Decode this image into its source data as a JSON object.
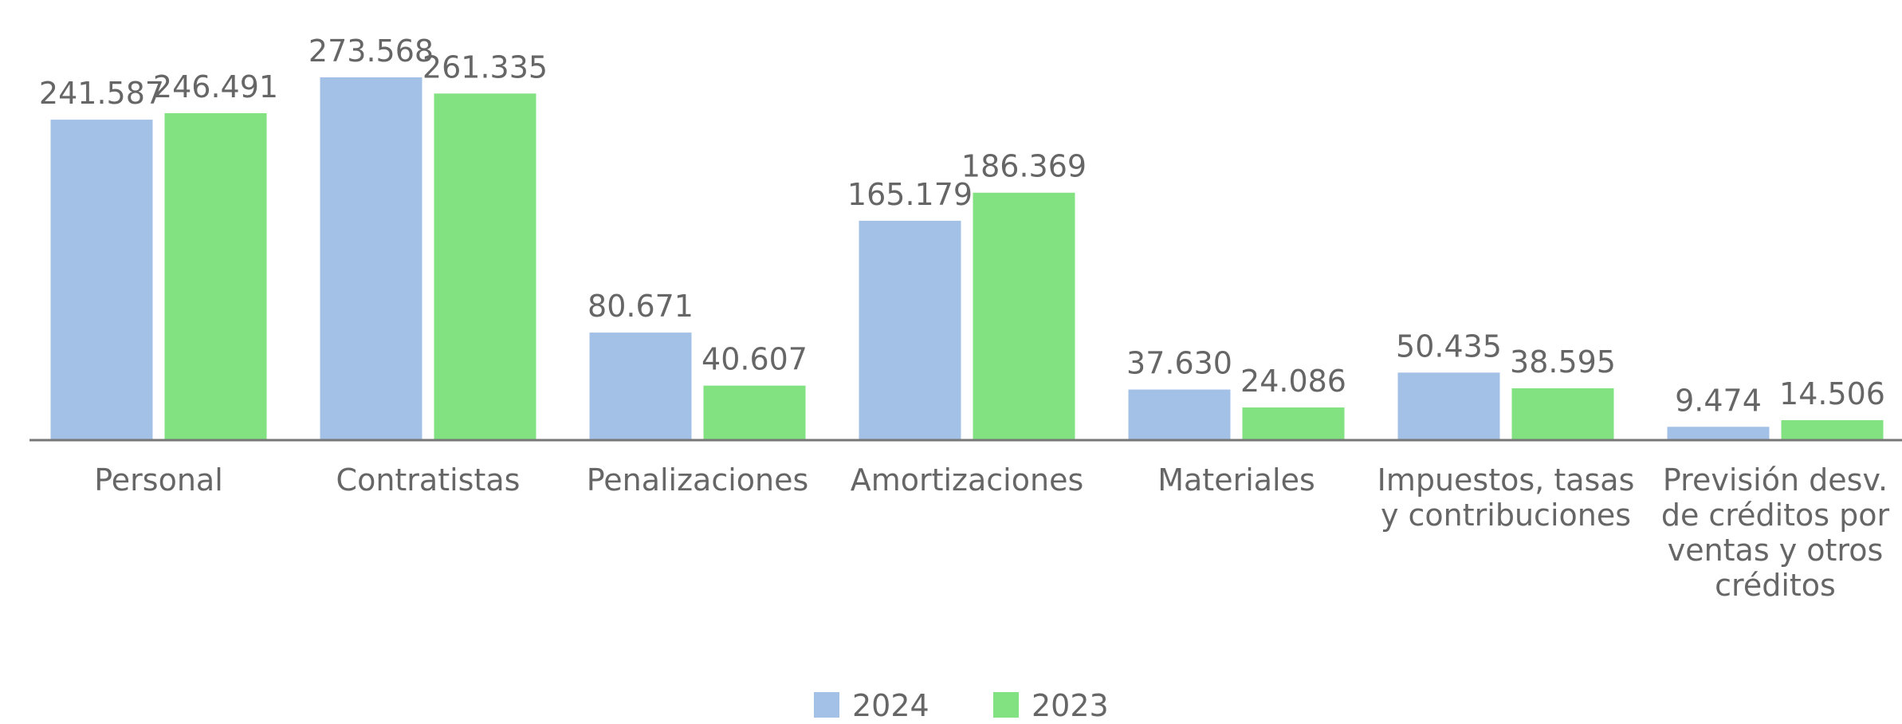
{
  "chart_data": {
    "type": "bar",
    "categories": [
      "Personal",
      "Contratistas",
      "Penalizaciones",
      "Amortizaciones",
      "Materiales",
      "Impuestos, tasas y contribuciones",
      "Previsión desv. de créditos por ventas y otros créditos"
    ],
    "series": [
      {
        "name": "2024",
        "color": "#a3c1e6",
        "values": [
          241587,
          273568,
          80671,
          165179,
          37630,
          50435,
          9474
        ],
        "value_labels": [
          "241.587",
          "273.568",
          "80.671",
          "165.179",
          "37.630",
          "50.435",
          "9.474"
        ]
      },
      {
        "name": "2023",
        "color": "#82e180",
        "values": [
          246491,
          261335,
          40607,
          186369,
          24086,
          38595,
          14506
        ],
        "value_labels": [
          "246.491",
          "261.335",
          "40.607",
          "186.369",
          "24.086",
          "38.595",
          "14.506"
        ]
      }
    ],
    "legend": "bottom"
  }
}
